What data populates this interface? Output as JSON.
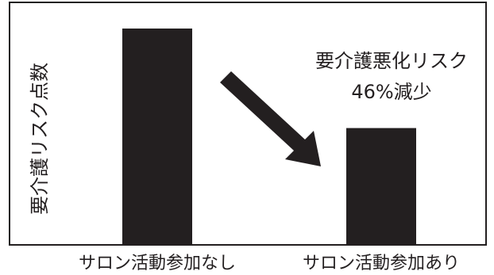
{
  "chart_data": {
    "type": "bar",
    "categories": [
      "サロン活動参加なし",
      "サロン活動参加あり"
    ],
    "values": [
      100,
      54
    ],
    "ylabel": "要介護リスク点数",
    "ylim": [
      0,
      100
    ],
    "grid": false,
    "legend": "none",
    "bar_color": "#231f20",
    "annotation": {
      "lines": [
        "要介護悪化リスク",
        "46%減少"
      ]
    },
    "arrow_icon": "arrow-down-right-icon"
  }
}
